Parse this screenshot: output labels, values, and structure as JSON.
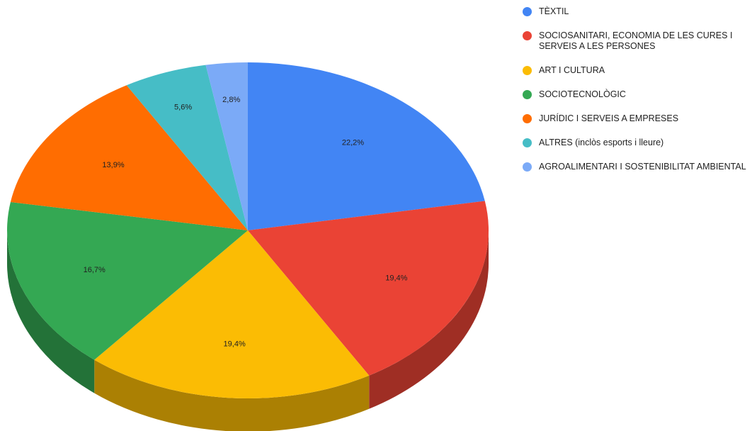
{
  "chart_data": {
    "type": "pie",
    "categories": [
      "TÈXTIL",
      "SOCIOSANITARI, ECONOMIA DE LES CURES I SERVEIS A LES PERSONES",
      "ART I CULTURA",
      "SOCIOTECNOLÒGIC",
      "JURÍDIC I SERVEIS A EMPRESES",
      "ALTRES (inclòs esports i lleure)",
      "AGROALIMENTARI I SOSTENIBILITAT AMBIENTAL"
    ],
    "values": [
      22.2,
      19.4,
      19.4,
      16.7,
      13.9,
      5.6,
      2.8
    ],
    "value_labels": [
      "22,2%",
      "19,4%",
      "19,4%",
      "16,7%",
      "13,9%",
      "5,6%",
      "2,8%"
    ],
    "colors": [
      "#4285f4",
      "#ea4335",
      "#fbbc04",
      "#34a853",
      "#ff6d01",
      "#46bdc6",
      "#7baaf7"
    ],
    "legend": "right",
    "three_d": true
  }
}
